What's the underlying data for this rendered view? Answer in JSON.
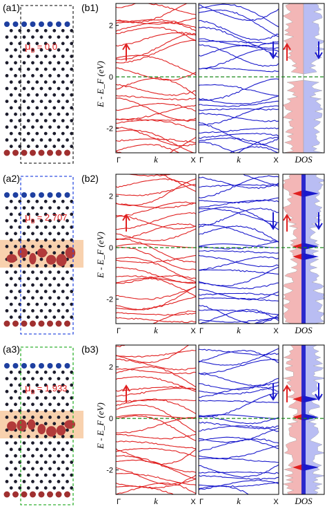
{
  "chart_data": [
    {
      "type": "line",
      "panel": "b1",
      "ylabel": "E - E_F (eV)",
      "ylim": [
        -2.95,
        2.85
      ],
      "ticks": [
        "2",
        "0",
        "-2"
      ],
      "xticks": [
        "Γ",
        "k",
        "X"
      ],
      "dos_label": "DOS",
      "fermi_level": 0.0,
      "gap": [
        -0.1,
        0.1
      ],
      "series": [
        {
          "color": "#e02020"
        },
        {
          "color": "#1a1acc"
        }
      ]
    },
    {
      "type": "line",
      "panel": "b2",
      "ylabel": "E - E_F (eV)",
      "ylim": [
        -2.95,
        2.85
      ],
      "ticks": [
        "2",
        "0",
        "-2"
      ],
      "xticks": [
        "Γ",
        "k",
        "X"
      ],
      "dos_label": "DOS",
      "fermi_level": 0.0,
      "series": [
        {
          "color": "#e02020"
        },
        {
          "color": "#1a1acc"
        }
      ]
    },
    {
      "type": "line",
      "panel": "b3",
      "ylabel": "E - E_F (eV)",
      "ylim": [
        -2.95,
        2.85
      ],
      "ticks": [
        "2",
        "0",
        "-2"
      ],
      "xticks": [
        "Γ",
        "k",
        "X"
      ],
      "dos_label": "DOS",
      "fermi_level": 0.0,
      "series": [
        {
          "color": "#e02020"
        },
        {
          "color": "#1a1acc"
        }
      ]
    }
  ],
  "structures": [
    {
      "label": "(a1)",
      "mu_text": "μ",
      "mu_sub": "B",
      "mu_value": "= 0.0",
      "box_color": "#333333",
      "density": false
    },
    {
      "label": "(a2)",
      "mu_text": "μ",
      "mu_sub": "B",
      "mu_value": "= 2.707",
      "box_color": "#3050e0",
      "density": true
    },
    {
      "label": "(a3)",
      "mu_text": "μ",
      "mu_sub": "B",
      "mu_value": "= 1.933",
      "box_color": "#30b030",
      "density": true
    }
  ],
  "panel_labels": [
    "(b1)",
    "(b2)",
    "(b3)"
  ],
  "colors": {
    "spin_up": "#e02020",
    "spin_down": "#1a1acc",
    "fermi": "#1a8a1a",
    "highlight": "#f7c9a0",
    "atom_red": "#a03030",
    "atom_blue": "#1e3fa0"
  }
}
